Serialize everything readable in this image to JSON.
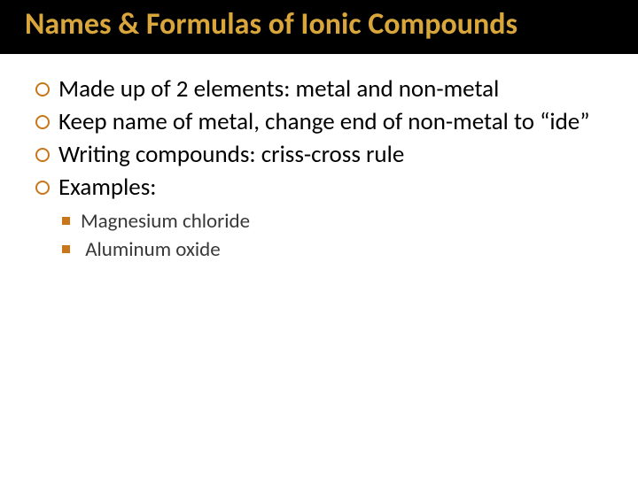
{
  "title": "Names & Formulas of Ionic Compounds",
  "colors": {
    "title_bg": "#000000",
    "title_text": "#d9a63b",
    "body_bg": "#ffffff",
    "bullet_ring": "#c9761a",
    "sub_bullet_fill": "#c9761a",
    "body_text": "#000000",
    "sub_text": "#383838"
  },
  "typography": {
    "title_fontsize": 34,
    "title_weight": 700,
    "level1_fontsize": 27,
    "level2_fontsize": 23,
    "font_family": "Calibri"
  },
  "bullets": [
    "Made up of 2 elements: metal and non-metal",
    "Keep name of metal, change end of non-metal to “ide”",
    "Writing compounds: criss-cross rule",
    "Examples:"
  ],
  "sub_bullets": [
    "Magnesium chloride",
    " Aluminum oxide"
  ]
}
